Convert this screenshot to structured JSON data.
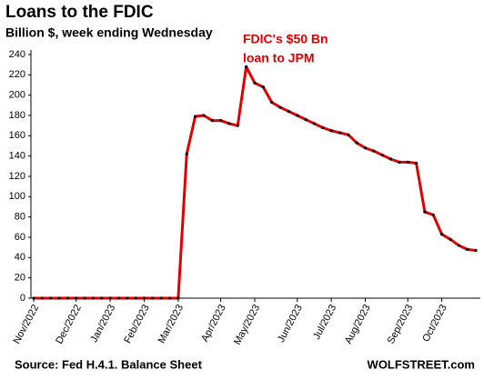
{
  "chart_data": {
    "type": "line",
    "title": "Loans to the FDIC",
    "subtitle": "Billion $, week ending Wednesday",
    "annotation": [
      "FDIC's $50 Bn",
      "loan to JPM"
    ],
    "source": "Source: Fed H.4.1. Balance Sheet",
    "credit": "WOLFSTREET.com",
    "categories": [
      "Nov/2022",
      null,
      null,
      null,
      null,
      "Dec/2022",
      null,
      null,
      null,
      "Jan/2023",
      null,
      null,
      null,
      "Feb/2023",
      null,
      null,
      null,
      "Mar/2023",
      null,
      null,
      null,
      null,
      "Apr/2023",
      null,
      null,
      null,
      "May/2023",
      null,
      null,
      null,
      null,
      "Jun/2023",
      null,
      null,
      null,
      "Jul/2023",
      null,
      null,
      null,
      "Aug/2023",
      null,
      null,
      null,
      null,
      "Sep/2023",
      null,
      null,
      null,
      "Oct/2023",
      null,
      null,
      null,
      null
    ],
    "series": [
      {
        "color": "#e00000",
        "marker_color": "#000000",
        "values": [
          0,
          0,
          0,
          0,
          0,
          0,
          0,
          0,
          0,
          0,
          0,
          0,
          0,
          0,
          0,
          0,
          0,
          0,
          142,
          179,
          180,
          175,
          175,
          172,
          170,
          228,
          212,
          208,
          193,
          188,
          184,
          180,
          176,
          172,
          168,
          165,
          163,
          161,
          153,
          148,
          145,
          141,
          137,
          134,
          134,
          133,
          85,
          82,
          63,
          58,
          52,
          48,
          47
        ]
      }
    ],
    "ylim": [
      0,
      240
    ],
    "yticks": [
      0,
      20,
      40,
      60,
      80,
      100,
      120,
      140,
      160,
      180,
      200,
      220,
      240
    ],
    "grid": false
  }
}
